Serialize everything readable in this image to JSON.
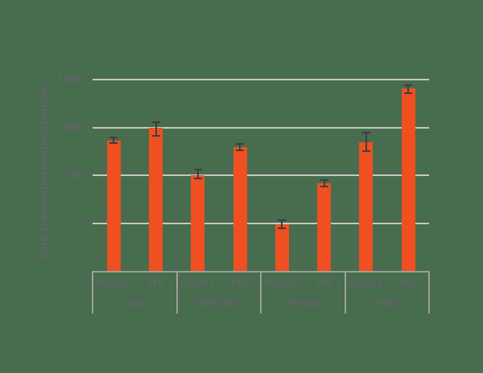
{
  "background_color": "#486C4E",
  "chart_data": {
    "type": "bar",
    "title": "",
    "ylabel": "Fold transcriptional activation",
    "xlabel": "",
    "scale": "log",
    "ylim": [
      1,
      10000
    ],
    "grid": true,
    "legend": false,
    "yticks": [
      {
        "label": "10000",
        "value": 10000
      },
      {
        "label": "1000",
        "value": 1000
      },
      {
        "label": "100",
        "value": 100
      },
      {
        "label": "10",
        "value": 10
      },
      {
        "label": "1",
        "value": 1
      }
    ],
    "groups": [
      {
        "label": "U2OS",
        "bars": [
          {
            "label": "POU5F1",
            "value": 540,
            "err_lo": 470,
            "err_hi": 610
          },
          {
            "label": "TTN",
            "value": 1000,
            "err_lo": 680,
            "err_hi": 1320
          }
        ]
      },
      {
        "label": "HEK293T",
        "bars": [
          {
            "label": "POU5F1",
            "value": 100,
            "err_lo": 88,
            "err_hi": 132
          },
          {
            "label": "TTN",
            "value": 390,
            "err_lo": 330,
            "err_hi": 460
          }
        ]
      },
      {
        "label": "MCF10A",
        "bars": [
          {
            "label": "POU5F1",
            "value": 9.5,
            "err_lo": 7.8,
            "err_hi": 11.5
          },
          {
            "label": "TTN",
            "value": 68,
            "err_lo": 59,
            "err_hi": 79
          }
        ]
      },
      {
        "label": "K562",
        "bars": [
          {
            "label": "POU5F1",
            "value": 500,
            "err_lo": 320,
            "err_hi": 780
          },
          {
            "label": "TTN",
            "value": 6500,
            "err_lo": 5300,
            "err_hi": 7700
          }
        ]
      }
    ],
    "colors": {
      "bar": "#F04F21",
      "error_bar": "#3E3E3E",
      "gridline": "#C7C7C7",
      "axis_line": "#9E9E9E",
      "text": "#676070"
    }
  }
}
